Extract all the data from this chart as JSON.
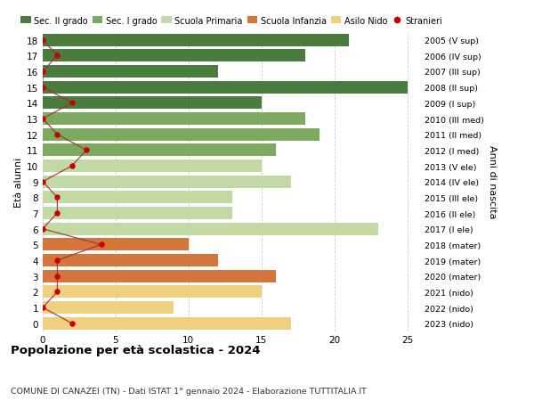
{
  "ages": [
    18,
    17,
    16,
    15,
    14,
    13,
    12,
    11,
    10,
    9,
    8,
    7,
    6,
    5,
    4,
    3,
    2,
    1,
    0
  ],
  "right_labels": [
    "2005 (V sup)",
    "2006 (IV sup)",
    "2007 (III sup)",
    "2008 (II sup)",
    "2009 (I sup)",
    "2010 (III med)",
    "2011 (II med)",
    "2012 (I med)",
    "2013 (V ele)",
    "2014 (IV ele)",
    "2015 (III ele)",
    "2016 (II ele)",
    "2017 (I ele)",
    "2018 (mater)",
    "2019 (mater)",
    "2020 (mater)",
    "2021 (nido)",
    "2022 (nido)",
    "2023 (nido)"
  ],
  "bar_values": [
    21,
    18,
    12,
    25,
    15,
    18,
    19,
    16,
    15,
    17,
    13,
    13,
    23,
    10,
    12,
    16,
    15,
    9,
    17
  ],
  "bar_colors": [
    "#4a7c3f",
    "#4a7c3f",
    "#4a7c3f",
    "#4a7c3f",
    "#4a7c3f",
    "#7caa5e",
    "#7caa5e",
    "#7caa5e",
    "#c2d9a5",
    "#c2d9a5",
    "#c2d9a5",
    "#c2d9a5",
    "#c2d9a5",
    "#d4763b",
    "#d4763b",
    "#d4763b",
    "#f0d080",
    "#f0d080",
    "#f0d080"
  ],
  "stranieri_x": [
    0,
    1,
    0,
    0,
    2,
    0,
    1,
    3,
    2,
    0,
    1,
    1,
    0,
    4,
    1,
    1,
    1,
    0,
    2
  ],
  "legend_labels": [
    "Sec. II grado",
    "Sec. I grado",
    "Scuola Primaria",
    "Scuola Infanzia",
    "Asilo Nido",
    "Stranieri"
  ],
  "legend_colors": [
    "#4a7c3f",
    "#7caa5e",
    "#c2d9a5",
    "#d4763b",
    "#f0d080",
    "#cc0000"
  ],
  "title": "Popolazione per età scolastica - 2024",
  "subtitle": "COMUNE DI CANAZEI (TN) - Dati ISTAT 1° gennaio 2024 - Elaborazione TUTTITALIA.IT",
  "ylabel_left": "Età alunni",
  "ylabel_right": "Anni di nascita",
  "xlim_max": 26,
  "xticks": [
    0,
    5,
    10,
    15,
    20,
    25
  ],
  "background_color": "#ffffff",
  "grid_color": "#cccccc",
  "bar_height": 0.8
}
